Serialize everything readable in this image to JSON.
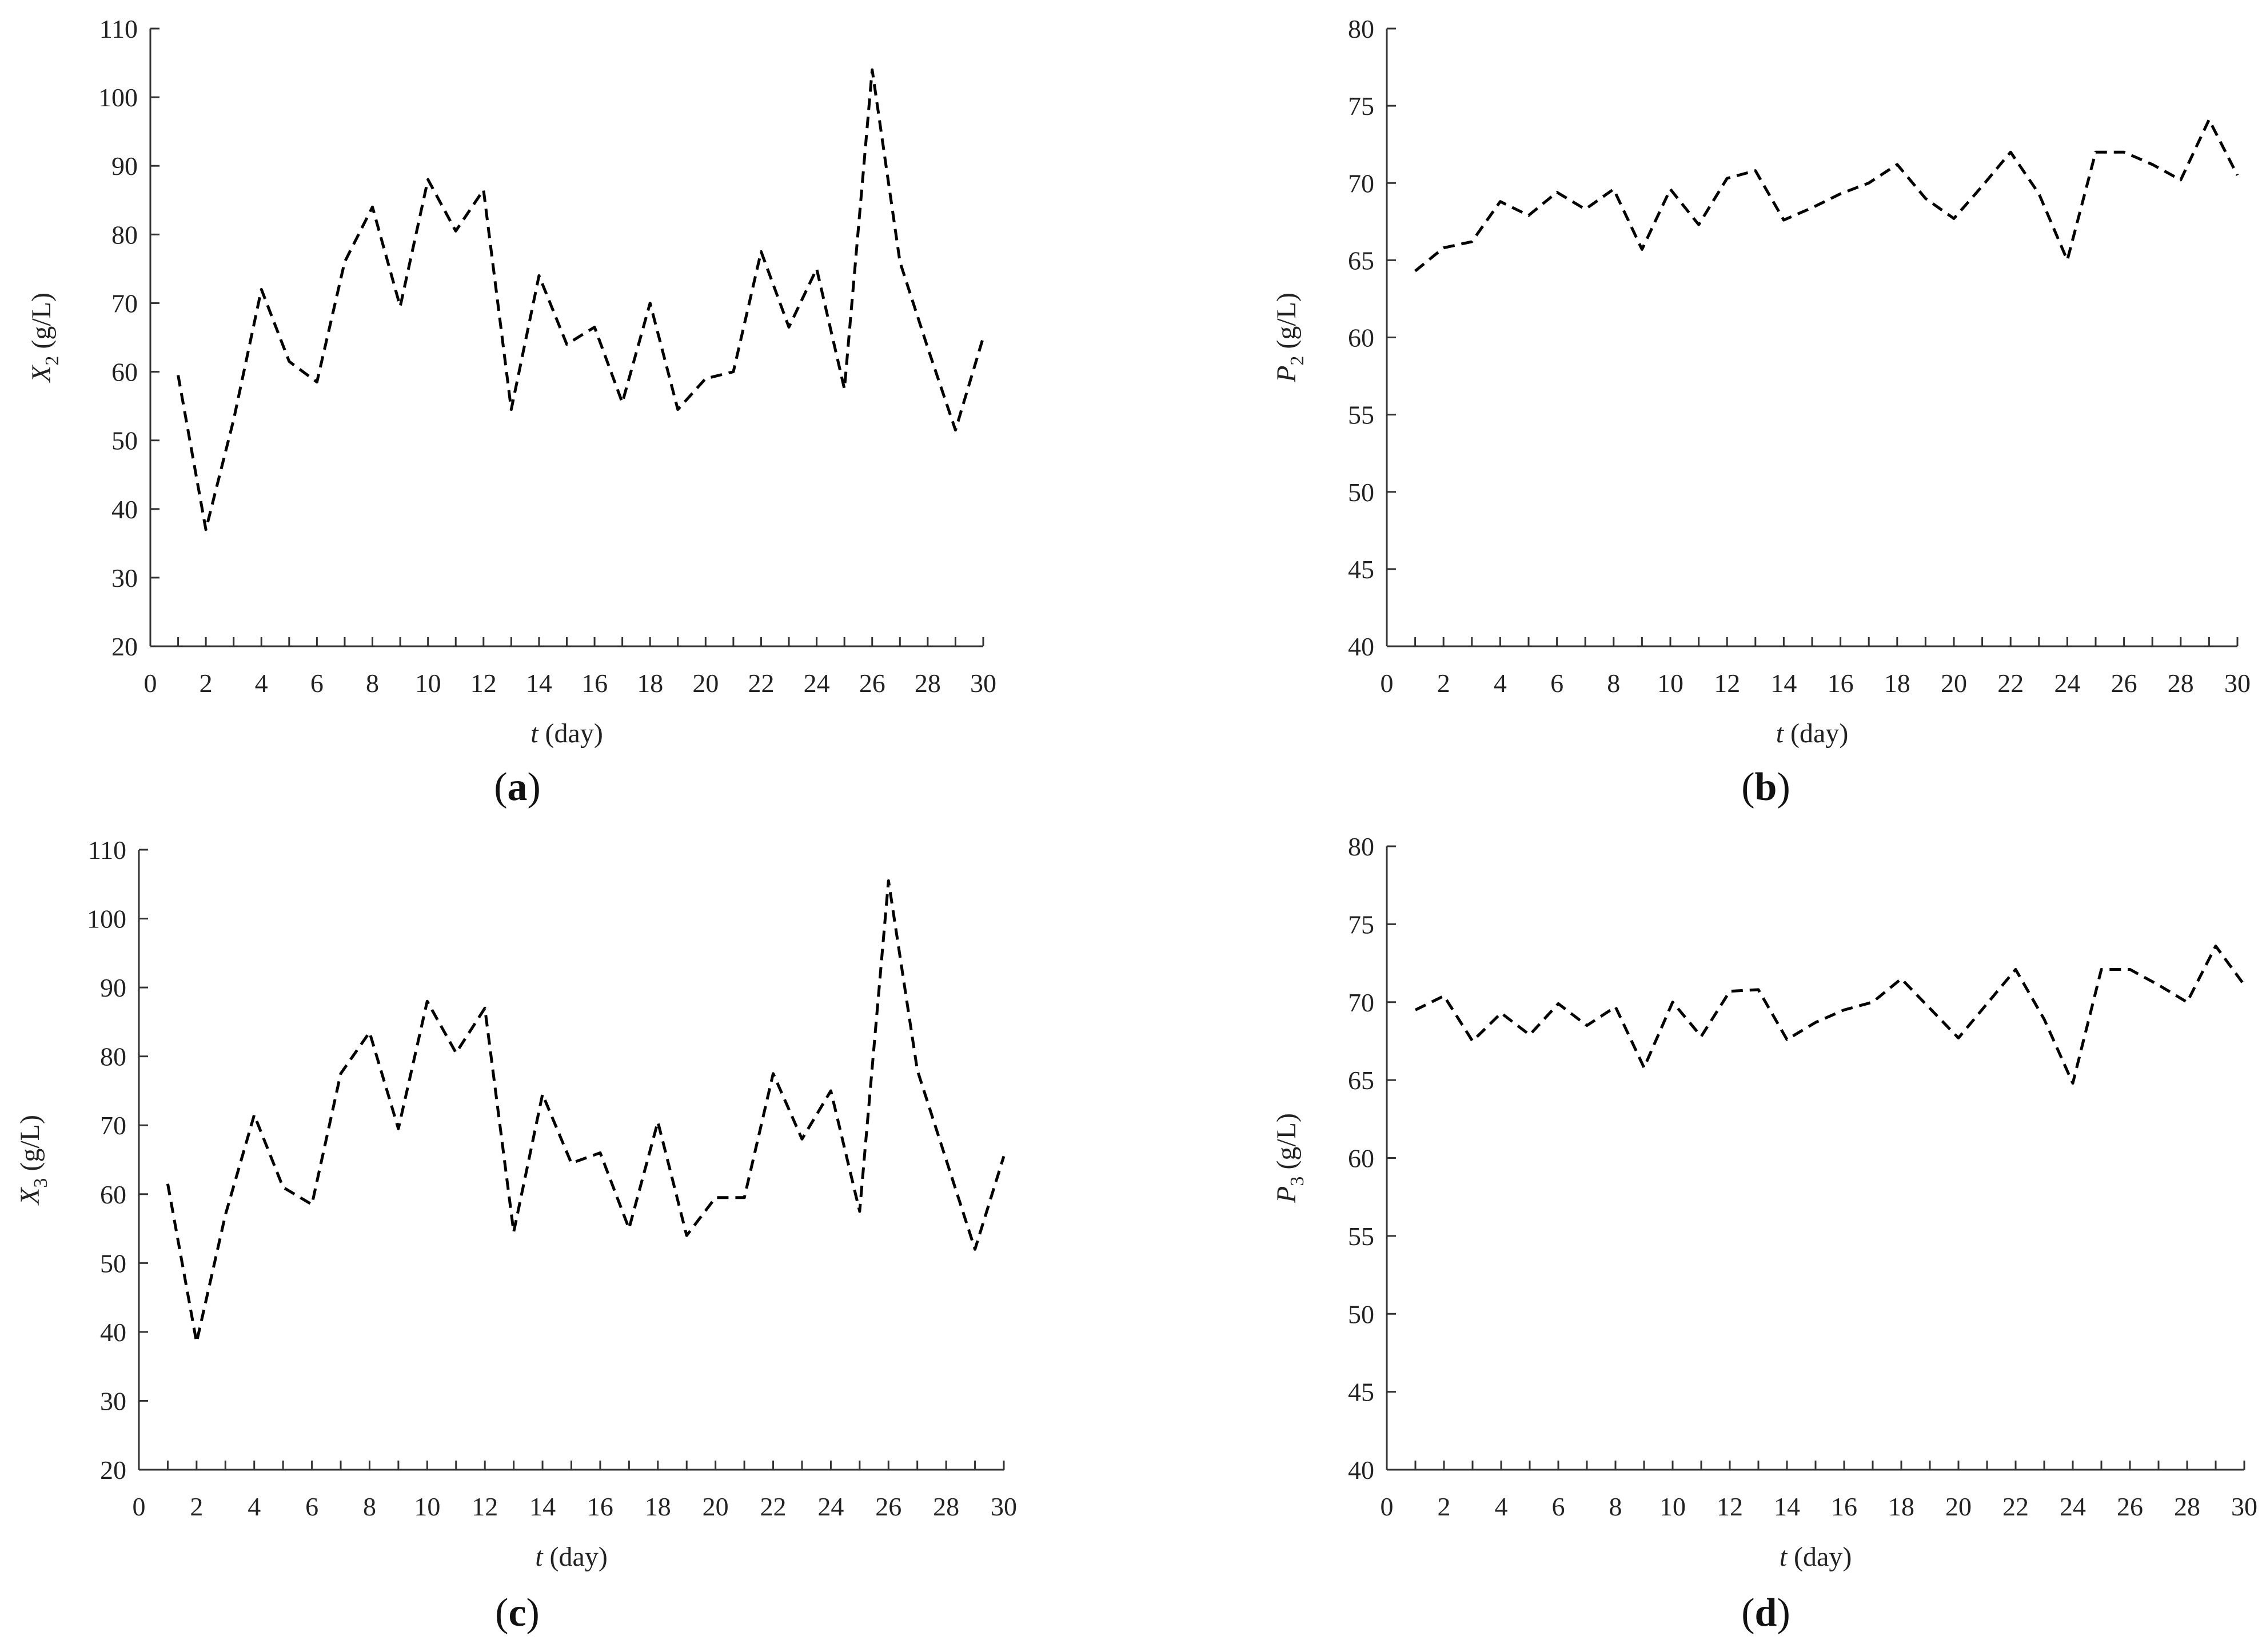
{
  "chart_data": [
    {
      "id": "a",
      "type": "line",
      "panel_label": "a",
      "ylabel": {
        "main": "X",
        "sub": "2",
        "unit": " (g/L)"
      },
      "xlabel": {
        "var": "t",
        "rest": " (day)"
      },
      "xlim": [
        0,
        30
      ],
      "ylim": [
        20,
        110
      ],
      "xticks": [
        0,
        2,
        4,
        6,
        8,
        10,
        12,
        14,
        16,
        18,
        20,
        22,
        24,
        26,
        28,
        30
      ],
      "yticks": [
        20,
        30,
        40,
        50,
        60,
        70,
        80,
        90,
        100,
        110
      ],
      "x": [
        1,
        2,
        3,
        4,
        5,
        6,
        7,
        8,
        9,
        10,
        11,
        12,
        13,
        14,
        15,
        16,
        17,
        18,
        19,
        20,
        21,
        22,
        23,
        24,
        25,
        26,
        27,
        28,
        29,
        30
      ],
      "series": [
        {
          "values": [
            59.5,
            37,
            53,
            72,
            61.5,
            58.5,
            76,
            84,
            69.5,
            88,
            80.5,
            86.5,
            54.5,
            74,
            64,
            66.5,
            55.5,
            70,
            54.5,
            59,
            60,
            77.5,
            66.5,
            75,
            57.5,
            104,
            76,
            63.5,
            51.5,
            65
          ]
        }
      ],
      "grid": false
    },
    {
      "id": "b",
      "type": "line",
      "panel_label": "b",
      "ylabel": {
        "main": "P",
        "sub": "2",
        "unit": " (g/L)"
      },
      "xlabel": {
        "var": "t",
        "rest": " (day)"
      },
      "xlim": [
        0,
        30
      ],
      "ylim": [
        40,
        80
      ],
      "xticks": [
        0,
        2,
        4,
        6,
        8,
        10,
        12,
        14,
        16,
        18,
        20,
        22,
        24,
        26,
        28,
        30
      ],
      "yticks": [
        40,
        45,
        50,
        55,
        60,
        65,
        70,
        75,
        80
      ],
      "x": [
        1,
        2,
        3,
        4,
        5,
        6,
        7,
        8,
        9,
        10,
        11,
        12,
        13,
        14,
        15,
        16,
        17,
        18,
        19,
        20,
        21,
        22,
        23,
        24,
        25,
        26,
        27,
        28,
        29,
        30
      ],
      "series": [
        {
          "values": [
            64.3,
            65.8,
            66.2,
            68.8,
            67.9,
            69.4,
            68.3,
            69.6,
            65.7,
            69.6,
            67.3,
            70.3,
            70.8,
            67.6,
            68.4,
            69.3,
            70.0,
            71.2,
            69.0,
            67.7,
            69.8,
            72.0,
            69.3,
            65.0,
            72.0,
            72.0,
            71.2,
            70.2,
            74.1,
            70.5
          ]
        }
      ],
      "grid": false
    },
    {
      "id": "c",
      "type": "line",
      "panel_label": "c",
      "ylabel": {
        "main": "X",
        "sub": "3",
        "unit": " (g/L)"
      },
      "xlabel": {
        "var": "t",
        "rest": " (day)"
      },
      "xlim": [
        0,
        30
      ],
      "ylim": [
        20,
        110
      ],
      "xticks": [
        0,
        2,
        4,
        6,
        8,
        10,
        12,
        14,
        16,
        18,
        20,
        22,
        24,
        26,
        28,
        30
      ],
      "yticks": [
        20,
        30,
        40,
        50,
        60,
        70,
        80,
        90,
        100,
        110
      ],
      "x": [
        1,
        2,
        3,
        4,
        5,
        6,
        7,
        8,
        9,
        10,
        11,
        12,
        13,
        14,
        15,
        16,
        17,
        18,
        19,
        20,
        21,
        22,
        23,
        24,
        25,
        26,
        27,
        28,
        29,
        30
      ],
      "series": [
        {
          "values": [
            61.5,
            38.5,
            57,
            71.5,
            61,
            58.5,
            77.5,
            83.5,
            69.5,
            88,
            80.5,
            87,
            54.5,
            74.5,
            64.5,
            66,
            55,
            70.5,
            54,
            59.5,
            59.5,
            77.5,
            68,
            75,
            57.5,
            105.5,
            78,
            65,
            52,
            65.5
          ]
        }
      ],
      "grid": false
    },
    {
      "id": "d",
      "type": "line",
      "panel_label": "d",
      "ylabel": {
        "main": "P",
        "sub": "3",
        "unit": " (g/L)"
      },
      "xlabel": {
        "var": "t",
        "rest": " (day)"
      },
      "xlim": [
        0,
        30
      ],
      "ylim": [
        40,
        80
      ],
      "xticks": [
        0,
        2,
        4,
        6,
        8,
        10,
        12,
        14,
        16,
        18,
        20,
        22,
        24,
        26,
        28,
        30
      ],
      "yticks": [
        40,
        45,
        50,
        55,
        60,
        65,
        70,
        75,
        80
      ],
      "x": [
        1,
        2,
        3,
        4,
        5,
        6,
        7,
        8,
        9,
        10,
        11,
        12,
        13,
        14,
        15,
        16,
        17,
        18,
        19,
        20,
        21,
        22,
        23,
        24,
        25,
        26,
        27,
        28,
        29,
        30
      ],
      "series": [
        {
          "values": [
            69.5,
            70.4,
            67.5,
            69.3,
            67.9,
            69.9,
            68.5,
            69.7,
            65.8,
            70.0,
            67.8,
            70.7,
            70.8,
            67.6,
            68.7,
            69.5,
            70.0,
            71.5,
            69.6,
            67.7,
            69.9,
            72.1,
            68.9,
            64.8,
            72.1,
            72.1,
            71.1,
            70.0,
            73.6,
            71.1
          ]
        }
      ],
      "grid": false
    }
  ]
}
